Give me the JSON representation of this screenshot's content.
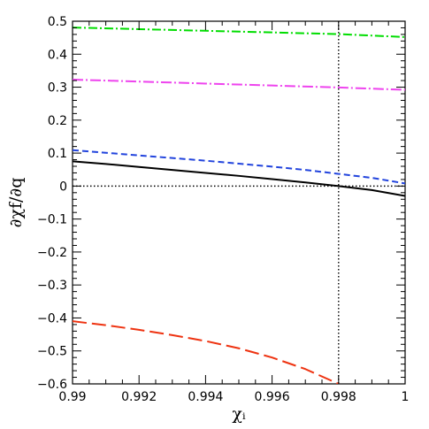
{
  "chart_data": {
    "type": "line",
    "xlabel": "χᵢ",
    "ylabel": "∂χf/∂q",
    "xlim": [
      0.99,
      1.0
    ],
    "ylim": [
      -0.6,
      0.5
    ],
    "xticks": [
      0.99,
      0.992,
      0.994,
      0.996,
      0.998,
      1.0
    ],
    "xtick_labels": [
      "0.99",
      "0.992",
      "0.994",
      "0.996",
      "0.998",
      "1"
    ],
    "yticks": [
      -0.6,
      -0.5,
      -0.4,
      -0.3,
      -0.2,
      -0.1,
      0.0,
      0.1,
      0.2,
      0.3,
      0.4,
      0.5
    ],
    "ytick_labels": [
      "−0.6",
      "−0.5",
      "−0.4",
      "−0.3",
      "−0.2",
      "−0.1",
      "0",
      "0.1",
      "0.2",
      "0.3",
      "0.4",
      "0.5"
    ],
    "grid": false,
    "series": [
      {
        "color": "#00dd00",
        "style": "dash-dot",
        "x": [
          0.99,
          0.992,
          0.994,
          0.996,
          0.998,
          1.0
        ],
        "y": [
          0.481,
          0.476,
          0.471,
          0.466,
          0.461,
          0.452
        ]
      },
      {
        "color": "#ee44ee",
        "style": "long-dash-dot",
        "x": [
          0.99,
          0.992,
          0.994,
          0.996,
          0.998,
          1.0
        ],
        "y": [
          0.323,
          0.317,
          0.311,
          0.305,
          0.299,
          0.292
        ]
      },
      {
        "color": "#2244dd",
        "style": "dashed",
        "x": [
          0.99,
          0.991,
          0.992,
          0.993,
          0.994,
          0.995,
          0.996,
          0.997,
          0.998,
          0.999,
          1.0
        ],
        "y": [
          0.109,
          0.101,
          0.093,
          0.085,
          0.077,
          0.068,
          0.059,
          0.049,
          0.037,
          0.025,
          0.008
        ]
      },
      {
        "color": "#000000",
        "style": "solid",
        "x": [
          0.99,
          0.991,
          0.992,
          0.993,
          0.994,
          0.995,
          0.996,
          0.997,
          0.998,
          0.999,
          1.0
        ],
        "y": [
          0.075,
          0.067,
          0.058,
          0.049,
          0.04,
          0.031,
          0.021,
          0.011,
          0.0,
          -0.012,
          -0.03
        ]
      },
      {
        "color": "#ee3311",
        "style": "long-dash",
        "x": [
          0.99,
          0.991,
          0.992,
          0.993,
          0.994,
          0.995,
          0.996,
          0.997,
          0.998
        ],
        "y": [
          -0.41,
          -0.422,
          -0.436,
          -0.452,
          -0.47,
          -0.492,
          -0.52,
          -0.555,
          -0.6
        ]
      }
    ],
    "reference_lines": [
      {
        "orientation": "horizontal",
        "value": 0.0,
        "style": "dotted",
        "color": "#000000"
      },
      {
        "orientation": "vertical",
        "value": 0.998,
        "style": "dotted",
        "color": "#000000"
      }
    ]
  }
}
